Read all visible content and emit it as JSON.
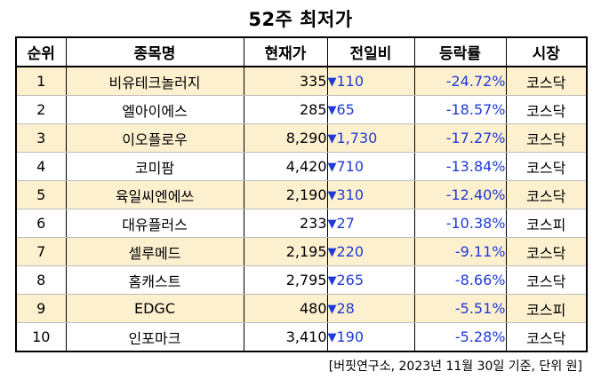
{
  "title": "52주 최저가",
  "headers": [
    "순위",
    "종목명",
    "현재가",
    "전일비",
    "등락률",
    "시장"
  ],
  "down_arrow": "▼",
  "rows": [
    {
      "rank": "1",
      "name": "비유테크놀러지",
      "price": "335",
      "change": "110",
      "rate": "-24.72%",
      "market": "코스닥"
    },
    {
      "rank": "2",
      "name": "엘아이에스",
      "price": "285",
      "change": "65",
      "rate": "-18.57%",
      "market": "코스닥"
    },
    {
      "rank": "3",
      "name": "이오플로우",
      "price": "8,290",
      "change": "1,730",
      "rate": "-17.27%",
      "market": "코스닥"
    },
    {
      "rank": "4",
      "name": "코미팜",
      "price": "4,420",
      "change": "710",
      "rate": "-13.84%",
      "market": "코스닥"
    },
    {
      "rank": "5",
      "name": "육일씨엔에쓰",
      "price": "2,190",
      "change": "310",
      "rate": "-12.40%",
      "market": "코스닥"
    },
    {
      "rank": "6",
      "name": "대유플러스",
      "price": "233",
      "change": "27",
      "rate": "-10.38%",
      "market": "코스피"
    },
    {
      "rank": "7",
      "name": "셀루메드",
      "price": "2,195",
      "change": "220",
      "rate": "-9.11%",
      "market": "코스닥"
    },
    {
      "rank": "8",
      "name": "홈캐스트",
      "price": "2,795",
      "change": "265",
      "rate": "-8.66%",
      "market": "코스닥"
    },
    {
      "rank": "9",
      "name": "EDGC",
      "price": "480",
      "change": "28",
      "rate": "-5.51%",
      "market": "코스피"
    },
    {
      "rank": "10",
      "name": "인포마크",
      "price": "3,410",
      "change": "190",
      "rate": "-5.28%",
      "market": "코스닥"
    }
  ],
  "source_note": "[버핏연구소, 2023년 11월 30일 기준, 단위 원]",
  "colors": {
    "accent_blue": "#1f3bd6",
    "row_highlight": "#fdf0cf"
  }
}
